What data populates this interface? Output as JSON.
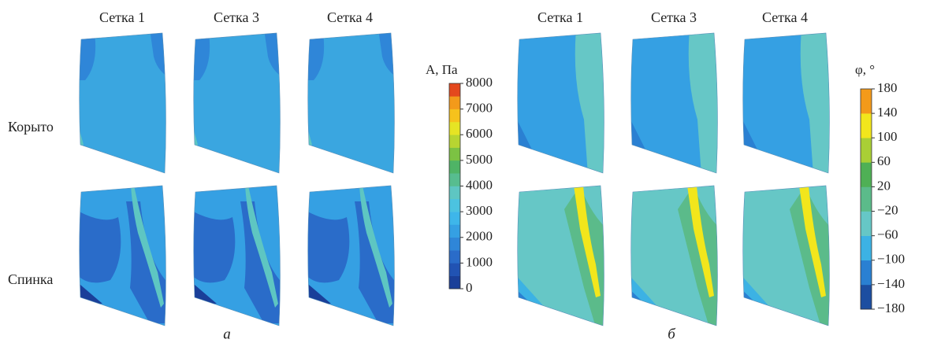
{
  "panel_a": {
    "columns": [
      "Сетка 1",
      "Сетка 3",
      "Сетка 4"
    ],
    "rows": [
      "Корыто",
      "Спинка"
    ],
    "label": "а",
    "colorbar": {
      "title": "A, Па",
      "ticks": [
        8000,
        7000,
        6000,
        5000,
        4000,
        3000,
        2000,
        1000,
        0
      ],
      "band_colors": [
        "#1a3f99",
        "#2153b3",
        "#2a6cc9",
        "#2f86d8",
        "#35a0e3",
        "#3eb6ea",
        "#4cc3e0",
        "#5ec6c2",
        "#57bd8f",
        "#4fb466",
        "#7cc243",
        "#b7d531",
        "#e6e424",
        "#f6c21c",
        "#f39a1a",
        "#e4481d"
      ]
    }
  },
  "panel_b": {
    "columns": [
      "Сетка 1",
      "Сетка 3",
      "Сетка 4"
    ],
    "label": "б",
    "colorbar": {
      "title": "φ, °",
      "ticks": [
        180,
        140,
        100,
        60,
        20,
        {
          "value": -20,
          "label": "−20"
        },
        {
          "value": -60,
          "label": "−60"
        },
        {
          "value": -100,
          "label": "−100"
        },
        {
          "value": -140,
          "label": "−140"
        },
        {
          "value": -180,
          "label": "−180"
        }
      ],
      "band_colors": [
        "#1c4ea1",
        "#2a80d2",
        "#3cb2e4",
        "#66c7c6",
        "#5bbb8a",
        "#4fb055",
        "#a9cf35",
        "#f2e61c",
        "#f39a1a"
      ]
    }
  }
}
